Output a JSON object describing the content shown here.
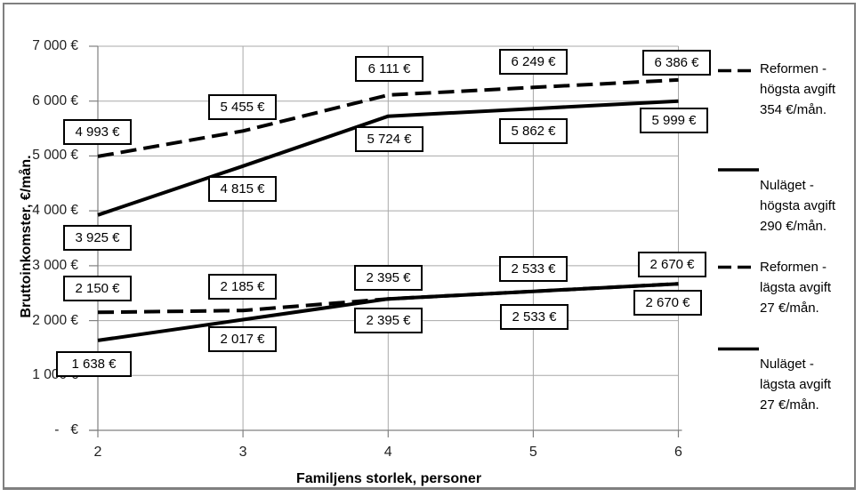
{
  "chart_data": {
    "type": "line",
    "x": [
      2,
      3,
      4,
      5,
      6
    ],
    "x_tick_labels": [
      "2",
      "3",
      "4",
      "5",
      "6"
    ],
    "xlabel": "Familjens storlek, personer",
    "ylabel": "Bruttoinkomster, €/mån.",
    "ylim": [
      0,
      7000
    ],
    "grid": true,
    "legend_position": "right",
    "y_ticks": [
      {
        "value": 7000,
        "label": "7 000 €"
      },
      {
        "value": 6000,
        "label": "6 000 €"
      },
      {
        "value": 5000,
        "label": "5 000 €"
      },
      {
        "value": 4000,
        "label": "4 000 €"
      },
      {
        "value": 3000,
        "label": "3 000 €"
      },
      {
        "value": 2000,
        "label": "2 000 €"
      },
      {
        "value": 1000,
        "label": "1 000 €"
      },
      {
        "value": 0,
        "label": "-   €"
      }
    ],
    "series": [
      {
        "name": "Reformen - högsta avgift 354 €/mån.",
        "legend_lines": [
          "Reformen -",
          "högsta avgift",
          "354 €/mån."
        ],
        "line_style": "dashed",
        "color": "#000000",
        "values": [
          4993,
          5455,
          6111,
          6249,
          6386
        ],
        "labels": [
          "4 993 €",
          "5 455 €",
          "6 111 €",
          "6 249 €",
          "6 386 €"
        ]
      },
      {
        "name": "Nuläget - högsta avgift 290 €/mån.",
        "legend_lines": [
          "Nuläget -",
          "högsta avgift",
          "290 €/mån."
        ],
        "line_style": "solid",
        "color": "#000000",
        "values": [
          3925,
          4815,
          5724,
          5862,
          5999
        ],
        "labels": [
          "3 925 €",
          "4 815 €",
          "5 724 €",
          "5 862 €",
          "5 999 €"
        ]
      },
      {
        "name": "Reformen - lägsta avgift 27 €/mån.",
        "legend_lines": [
          "Reformen -",
          "lägsta avgift",
          "27 €/mån."
        ],
        "line_style": "dashed",
        "color": "#000000",
        "values": [
          2150,
          2185,
          2395,
          2533,
          2670
        ],
        "labels": [
          "2 150 €",
          "2 185 €",
          "2 395 €",
          "2 533 €",
          "2 670 €"
        ]
      },
      {
        "name": "Nuläget - lägsta avgift 27 €/mån.",
        "legend_lines": [
          "Nuläget -",
          "lägsta avgift",
          "27 €/mån."
        ],
        "line_style": "solid",
        "color": "#000000",
        "values": [
          1638,
          2017,
          2395,
          2533,
          2670
        ],
        "labels": [
          "1 638 €",
          "2 017 €",
          "2 395 €",
          "2 533 €",
          "2 670 €"
        ]
      }
    ]
  },
  "colors": {
    "gridline": "#a8a8a8",
    "axis": "#808080",
    "series": "#000000",
    "label_box_bg": "#ffffff",
    "label_box_border": "#000000",
    "outer_border": "#7f7f7f"
  }
}
